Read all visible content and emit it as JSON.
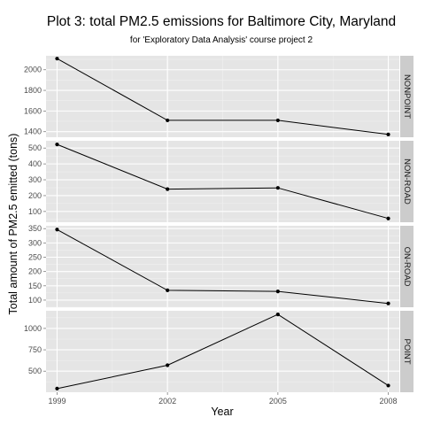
{
  "chart_data": {
    "type": "line",
    "title": "Plot 3: total PM2.5 emissions for Baltimore City, Maryland",
    "subtitle": "for 'Exploratory Data Analysis' course project 2",
    "xlabel": "Year",
    "ylabel": "Total amount of PM2.5 emitted (tons)",
    "x": [
      1999,
      2002,
      2005,
      2008
    ],
    "xlim": [
      1998.7,
      2008.3
    ],
    "grid": true,
    "facets": [
      {
        "name": "NONPOINT",
        "values": [
          2107.6,
          1509.5,
          1509.5,
          1373.2
        ],
        "ylim": [
          1346,
          2135
        ],
        "yticks": [
          1400,
          1600,
          1800,
          2000
        ]
      },
      {
        "name": "NON-ROAD",
        "values": [
          522.9,
          240.8,
          248.9,
          55.8
        ],
        "ylim": [
          32,
          546
        ],
        "yticks": [
          100,
          200,
          300,
          400,
          500
        ]
      },
      {
        "name": "ON-ROAD",
        "values": [
          346.8,
          134.3,
          130.4,
          88.3
        ],
        "ylim": [
          75,
          360
        ],
        "yticks": [
          100,
          150,
          200,
          250,
          300,
          350
        ]
      },
      {
        "name": "POINT",
        "values": [
          296.8,
          569.3,
          1163.3,
          332.2
        ],
        "ylim": [
          254,
          1206
        ],
        "yticks": [
          500,
          750,
          1000
        ]
      }
    ]
  }
}
